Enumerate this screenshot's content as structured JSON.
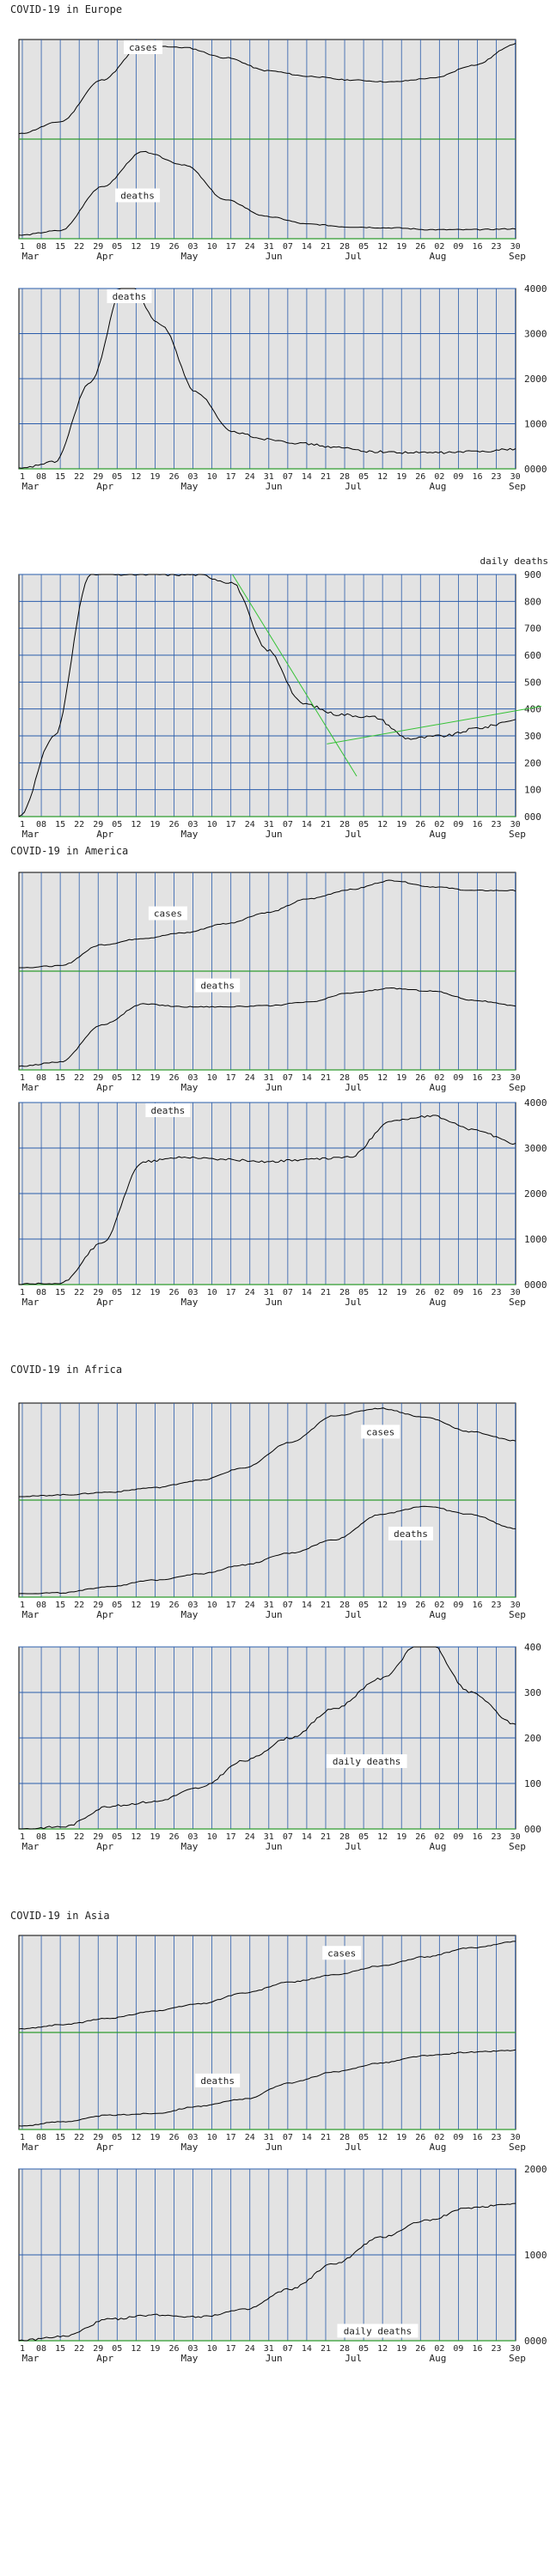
{
  "page": {
    "background": "#ffffff"
  },
  "colors": {
    "plot_bg": "#e3e3e3",
    "vgrid": "#2a5cab",
    "hgrid": "#2a5cab",
    "baseline": "#2e9b2e",
    "trend": "#35c235",
    "curve": "#000000",
    "label_bg": "#ffffff",
    "text": "#222222"
  },
  "x_axis": {
    "day_ticks": [
      "1",
      "08",
      "15",
      "22",
      "29",
      "05",
      "12",
      "19",
      "26",
      "03",
      "10",
      "17",
      "24",
      "31",
      "07",
      "14",
      "21",
      "28",
      "05",
      "12",
      "19",
      "26",
      "02",
      "09",
      "16",
      "23",
      "30"
    ],
    "months": [
      "Mar",
      "Apr",
      "May",
      "Jun",
      "Jul",
      "Aug",
      "Sep"
    ]
  },
  "regions": [
    {
      "title": "COVID-19 in Europe"
    },
    {
      "title": "COVID-19 in America"
    },
    {
      "title": "COVID-19 in Africa"
    },
    {
      "title": "COVID-19 in Asia"
    }
  ],
  "chart_data": [
    {
      "type": "line",
      "region": "Europe",
      "panel": "normalized",
      "series": [
        {
          "name": "cases",
          "values": [
            0.02,
            0.15,
            0.6,
            0.98,
            0.95,
            0.84,
            0.7,
            0.64,
            0.6,
            0.58,
            0.62,
            0.76,
            0.99
          ]
        },
        {
          "name": "deaths",
          "values": [
            0.0,
            0.05,
            0.52,
            0.9,
            0.76,
            0.38,
            0.2,
            0.12,
            0.09,
            0.08,
            0.06,
            0.06,
            0.07
          ]
        }
      ]
    },
    {
      "type": "line",
      "region": "Europe",
      "panel": "daily",
      "ylim": [
        0,
        4000
      ],
      "yticks": [
        "0000",
        "1000",
        "2000",
        "3000",
        "4000"
      ],
      "series": [
        {
          "name": "deaths",
          "values": [
            0,
            150,
            1900,
            4200,
            3200,
            1700,
            820,
            660,
            560,
            470,
            380,
            360,
            360,
            390,
            440
          ]
        }
      ]
    },
    {
      "type": "line",
      "region": "Europe",
      "panel": "daily-zoom",
      "ylabel": "daily deaths",
      "ylim": [
        0,
        900
      ],
      "yticks": [
        "000",
        "100",
        "200",
        "300",
        "400",
        "500",
        "600",
        "700",
        "800",
        "900"
      ],
      "series": [
        {
          "name": "daily deaths",
          "values": [
            0,
            300,
            900,
            900,
            900,
            900,
            870,
            620,
            420,
            380,
            370,
            290,
            300,
            330,
            360
          ]
        }
      ]
    },
    {
      "type": "line",
      "region": "America",
      "panel": "normalized",
      "series": [
        {
          "name": "cases",
          "values": [
            0.0,
            0.02,
            0.25,
            0.32,
            0.38,
            0.48,
            0.6,
            0.75,
            0.85,
            0.95,
            0.88,
            0.84,
            0.84
          ]
        },
        {
          "name": "deaths",
          "values": [
            0.0,
            0.05,
            0.45,
            0.68,
            0.65,
            0.65,
            0.66,
            0.7,
            0.8,
            0.85,
            0.82,
            0.72,
            0.66
          ]
        }
      ]
    },
    {
      "type": "line",
      "region": "America",
      "panel": "daily",
      "ylim": [
        0,
        4000
      ],
      "yticks": [
        "0000",
        "1000",
        "2000",
        "3000",
        "4000"
      ],
      "series": [
        {
          "name": "deaths",
          "values": [
            0,
            20,
            900,
            2700,
            2800,
            2750,
            2700,
            2750,
            2800,
            3600,
            3700,
            3400,
            3100
          ]
        }
      ]
    },
    {
      "type": "line",
      "region": "Africa",
      "panel": "normalized",
      "series": [
        {
          "name": "cases",
          "values": [
            0.0,
            0.02,
            0.05,
            0.1,
            0.18,
            0.32,
            0.6,
            0.9,
            0.98,
            0.88,
            0.72,
            0.62
          ]
        },
        {
          "name": "deaths",
          "values": [
            0.0,
            0.01,
            0.08,
            0.15,
            0.22,
            0.32,
            0.45,
            0.6,
            0.88,
            0.97,
            0.88,
            0.72
          ]
        }
      ]
    },
    {
      "type": "line",
      "region": "Africa",
      "panel": "daily",
      "ylim": [
        0,
        400
      ],
      "yticks": [
        "000",
        "100",
        "200",
        "300",
        "400"
      ],
      "series": [
        {
          "name": "daily deaths",
          "values": [
            0,
            5,
            50,
            60,
            90,
            150,
            200,
            265,
            330,
            420,
            300,
            230
          ]
        }
      ]
    },
    {
      "type": "line",
      "region": "Asia",
      "panel": "normalized",
      "series": [
        {
          "name": "cases",
          "values": [
            0.0,
            0.05,
            0.12,
            0.2,
            0.28,
            0.4,
            0.52,
            0.6,
            0.7,
            0.8,
            0.9,
            0.97
          ]
        },
        {
          "name": "deaths",
          "values": [
            0.0,
            0.05,
            0.12,
            0.14,
            0.22,
            0.3,
            0.48,
            0.6,
            0.7,
            0.78,
            0.82,
            0.84
          ]
        }
      ]
    },
    {
      "type": "line",
      "region": "Asia",
      "panel": "daily",
      "ylim": [
        0,
        2000
      ],
      "yticks": [
        "0000",
        "1000",
        "2000"
      ],
      "series": [
        {
          "name": "daily deaths",
          "values": [
            0,
            50,
            250,
            300,
            280,
            360,
            600,
            900,
            1200,
            1400,
            1550,
            1600
          ]
        }
      ]
    }
  ]
}
